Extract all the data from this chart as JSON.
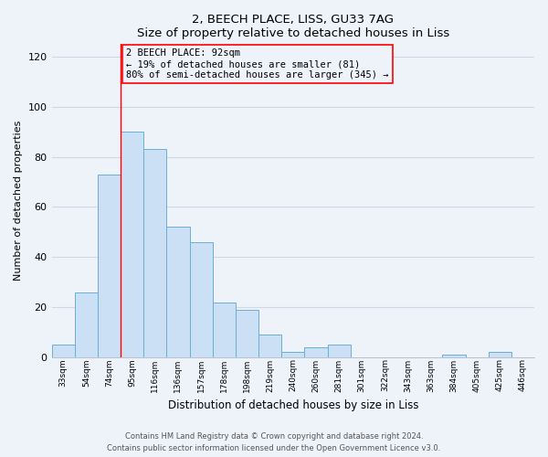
{
  "title": "2, BEECH PLACE, LISS, GU33 7AG",
  "subtitle": "Size of property relative to detached houses in Liss",
  "xlabel": "Distribution of detached houses by size in Liss",
  "ylabel": "Number of detached properties",
  "bar_labels": [
    "33sqm",
    "54sqm",
    "74sqm",
    "95sqm",
    "116sqm",
    "136sqm",
    "157sqm",
    "178sqm",
    "198sqm",
    "219sqm",
    "240sqm",
    "260sqm",
    "281sqm",
    "301sqm",
    "322sqm",
    "343sqm",
    "363sqm",
    "384sqm",
    "405sqm",
    "425sqm",
    "446sqm"
  ],
  "bar_values": [
    5,
    26,
    73,
    90,
    83,
    52,
    46,
    22,
    19,
    9,
    2,
    4,
    5,
    0,
    0,
    0,
    0,
    1,
    0,
    2,
    0
  ],
  "bar_color": "#cce0f5",
  "bar_edge_color": "#6aaed6",
  "ylim": [
    0,
    125
  ],
  "yticks": [
    0,
    20,
    40,
    60,
    80,
    100,
    120
  ],
  "vline_x_bar_idx": 3,
  "annotation_title": "2 BEECH PLACE: 92sqm",
  "annotation_line1": "← 19% of detached houses are smaller (81)",
  "annotation_line2": "80% of semi-detached houses are larger (345) →",
  "footer_line1": "Contains HM Land Registry data © Crown copyright and database right 2024.",
  "footer_line2": "Contains public sector information licensed under the Open Government Licence v3.0.",
  "background_color": "#eef2f9",
  "grid_color": "#d0d8e8",
  "spine_color": "#b0b8c8"
}
